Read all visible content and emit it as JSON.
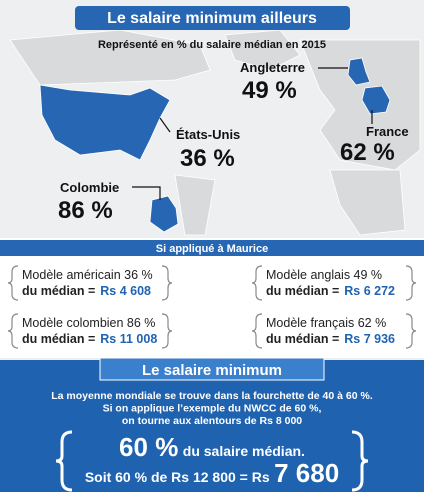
{
  "header": {
    "title": "Le salaire minimum ailleurs",
    "subtitle": "Représenté en % du salaire médian en 2015"
  },
  "countries": [
    {
      "name": "Angleterre",
      "share": "49 %"
    },
    {
      "name": "États-Unis",
      "share": "36 %"
    },
    {
      "name": "France",
      "share": "62 %"
    },
    {
      "name": "Colombie",
      "share": "86 %"
    }
  ],
  "mauritius": {
    "title": "Si appliqué à Maurice",
    "models": [
      {
        "line1": "Modèle américain 36 %",
        "line2": "du médian =",
        "amount": "Rs 4 608"
      },
      {
        "line1": "Modèle anglais 49 %",
        "line2": "du médian =",
        "amount": "Rs 6 272"
      },
      {
        "line1": "Modèle colombien 86 %",
        "line2": "du médian =",
        "amount": "Rs 11 008"
      },
      {
        "line1": "Modèle français 62 %",
        "line2": "du médian =",
        "amount": "Rs 7 936"
      }
    ]
  },
  "minimum": {
    "title": "Le salaire minimum",
    "paragraph": [
      "La moyenne mondiale se trouve dans la fourchette de 40 à 60 %.",
      "Si on applique l’exemple du NWCC de 60 %,",
      "on tourne aux alentours de Rs 8 000"
    ],
    "highlight": {
      "big": "60 %",
      "rest": "du salaire médian.",
      "line2": "Soit 60 % de Rs 12 800 = Rs",
      "result": "7 680"
    }
  }
}
